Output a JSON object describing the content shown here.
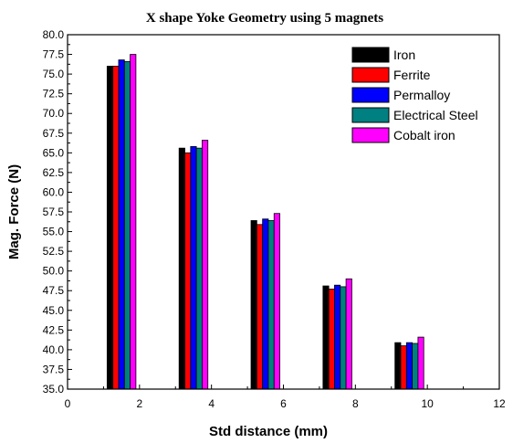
{
  "chart_data": {
    "type": "bar",
    "title": "X shape Yoke Geometry using 5 magnets",
    "xlabel": "Std distance (mm)",
    "ylabel": "Mag. Force (N)",
    "xlim": [
      0,
      12
    ],
    "ylim": [
      35.0,
      80.0
    ],
    "x_ticks": [
      "0",
      "2",
      "4",
      "6",
      "8",
      "10",
      "12"
    ],
    "y_ticks": [
      "35.0",
      "37.5",
      "40.0",
      "42.5",
      "45.0",
      "47.5",
      "50.0",
      "52.5",
      "55.0",
      "57.5",
      "60.0",
      "62.5",
      "65.0",
      "67.5",
      "70.0",
      "72.5",
      "75.0",
      "77.5",
      "80.0"
    ],
    "x": [
      1.5,
      3.5,
      5.5,
      7.5,
      9.5
    ],
    "grid": false,
    "legend_position": "top-right",
    "series": [
      {
        "name": "Iron",
        "color": "#000000",
        "values": [
          76.0,
          65.6,
          56.4,
          48.1,
          40.9
        ]
      },
      {
        "name": "Ferrite",
        "color": "#ff0000",
        "values": [
          76.0,
          65.0,
          55.9,
          47.7,
          40.5
        ]
      },
      {
        "name": "Permalloy",
        "color": "#0000ff",
        "values": [
          76.8,
          65.8,
          56.6,
          48.2,
          40.9
        ]
      },
      {
        "name": "Electrical Steel",
        "color": "#008080",
        "values": [
          76.6,
          65.6,
          56.4,
          48.0,
          40.8
        ]
      },
      {
        "name": "Cobalt iron",
        "color": "#ff00ff",
        "values": [
          77.5,
          66.6,
          57.3,
          49.0,
          41.6
        ]
      }
    ]
  }
}
